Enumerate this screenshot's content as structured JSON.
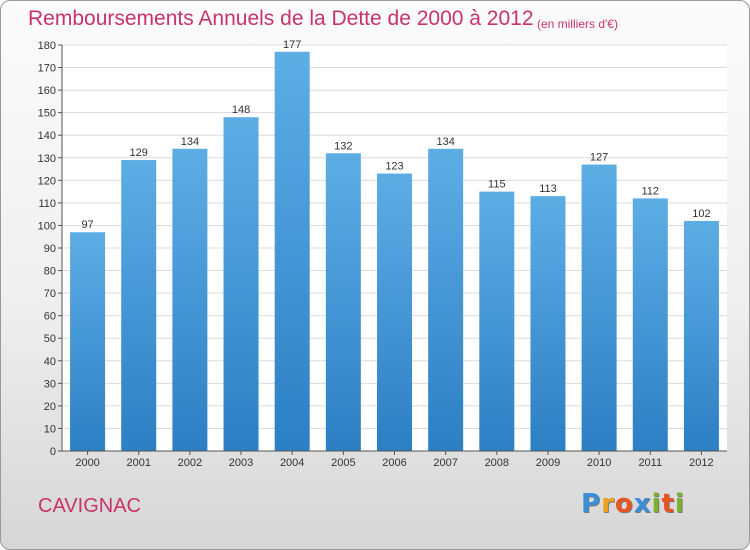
{
  "header": {
    "title": "Remboursements Annuels de la Dette de 2000 à 2012",
    "unit": "(en milliers d'€)"
  },
  "footer": {
    "town": "CAVIGNAC",
    "logo_text": "Proxiti"
  },
  "colors": {
    "title": "#c8336c",
    "bar_top": "#5dade5",
    "bar_bottom": "#2c7fc4",
    "logo": [
      "#3b8fd9",
      "#f0a21e",
      "#e8531f",
      "#3b8fd9",
      "#7bb12d",
      "#e8531f",
      "#7bb12d"
    ]
  },
  "chart_data": {
    "type": "bar",
    "title": "Remboursements Annuels de la Dette de 2000 à 2012",
    "unit": "(en milliers d'€)",
    "categories": [
      "2000",
      "2001",
      "2002",
      "2003",
      "2004",
      "2005",
      "2006",
      "2007",
      "2008",
      "2009",
      "2010",
      "2011",
      "2012"
    ],
    "values": [
      97,
      129,
      134,
      148,
      177,
      132,
      123,
      134,
      115,
      113,
      127,
      112,
      102
    ],
    "ylim": [
      0,
      180
    ],
    "yticks": [
      0,
      10,
      20,
      30,
      40,
      50,
      60,
      70,
      80,
      90,
      100,
      110,
      120,
      130,
      140,
      150,
      160,
      170,
      180
    ],
    "grid": true,
    "data_labels": true
  }
}
